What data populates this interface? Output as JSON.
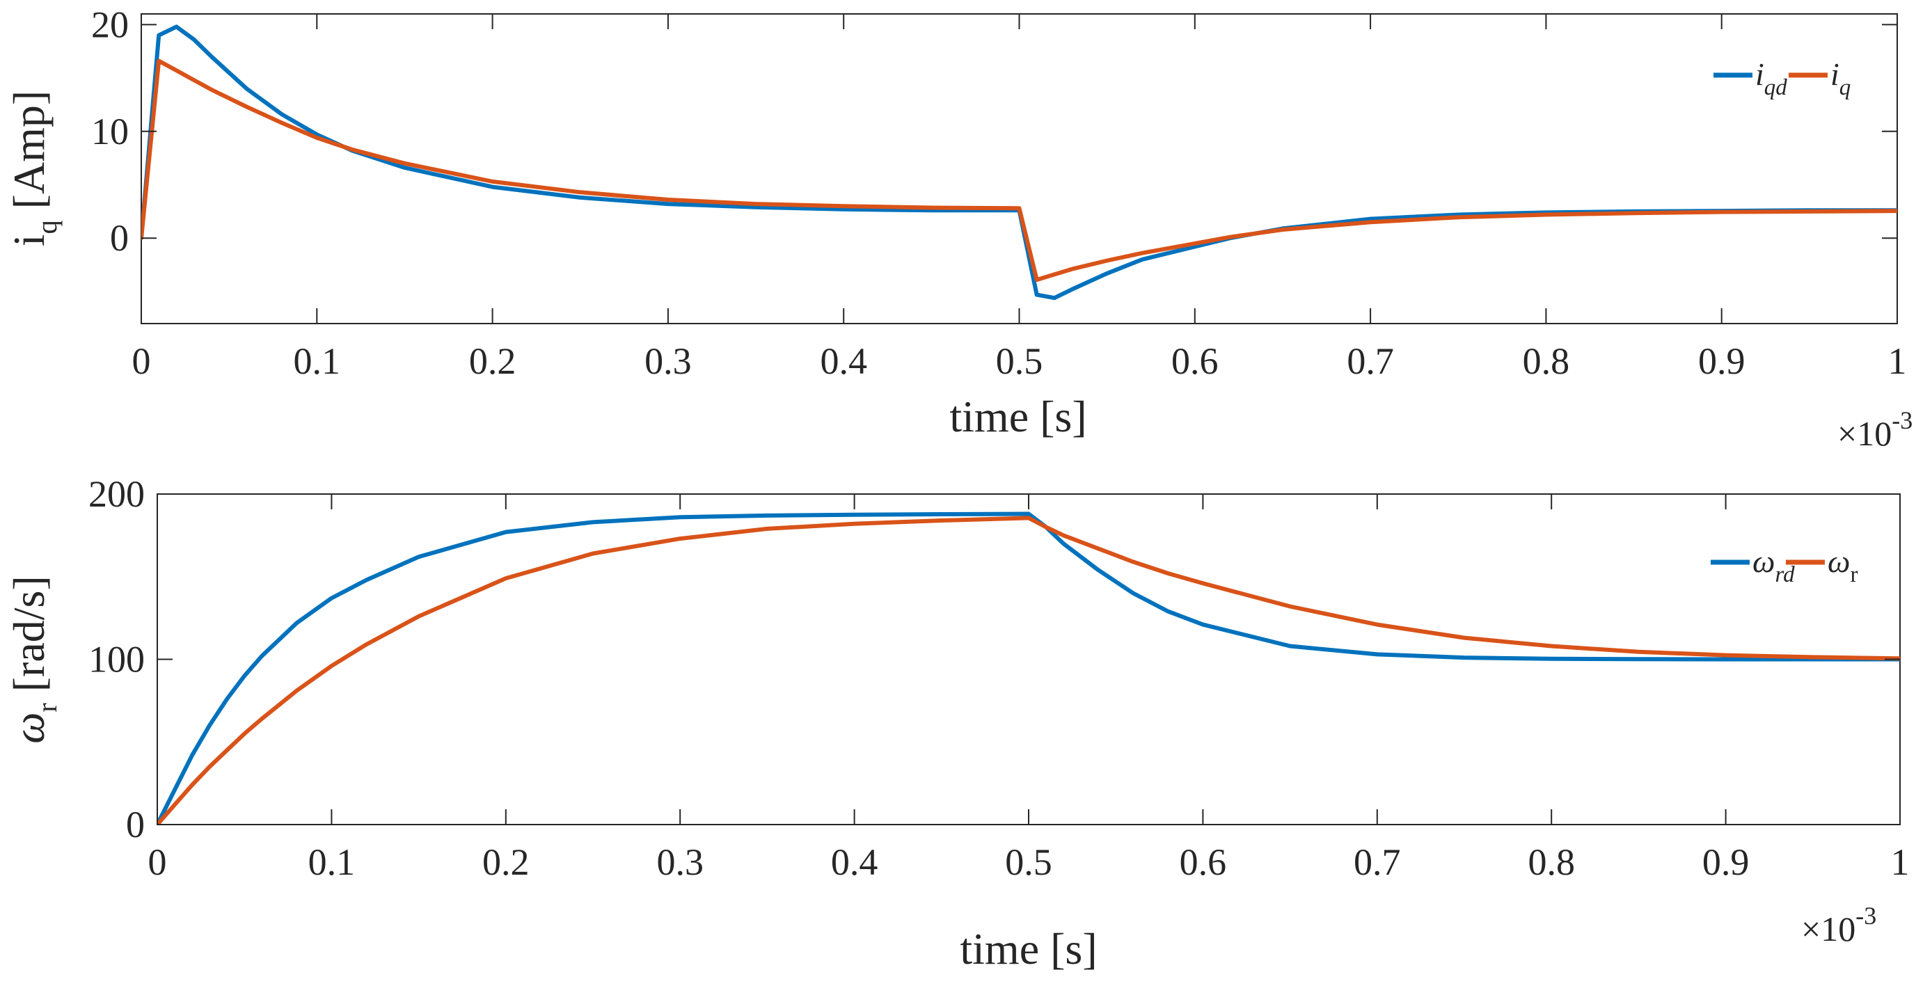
{
  "chart_data": [
    {
      "type": "line",
      "title": "",
      "xlabel": "time [s]",
      "ylabel": {
        "main": "i",
        "sub": "q",
        "unit": " [Amp]"
      },
      "x_exponent": {
        "prefix": "×10",
        "power": "-3"
      },
      "xlim": [
        0,
        1
      ],
      "ylim": [
        -8,
        21
      ],
      "xticks": [
        0,
        0.1,
        0.2,
        0.3,
        0.4,
        0.5,
        0.6,
        0.7,
        0.8,
        0.9,
        1
      ],
      "xtick_labels": [
        "0",
        "0.1",
        "0.2",
        "0.3",
        "0.4",
        "0.5",
        "0.6",
        "0.7",
        "0.8",
        "0.9",
        "1"
      ],
      "yticks": [
        0,
        10,
        20
      ],
      "ytick_labels": [
        "0",
        "10",
        "20"
      ],
      "grid": false,
      "legend": "top-right",
      "series": [
        {
          "name": "i_qd",
          "label_main": "i",
          "label_sub": "qd",
          "italic": true,
          "color": "#0072BD",
          "x": [
            0,
            0.01,
            0.02,
            0.03,
            0.04,
            0.05,
            0.06,
            0.08,
            0.1,
            0.12,
            0.15,
            0.2,
            0.25,
            0.3,
            0.35,
            0.4,
            0.45,
            0.5,
            0.51,
            0.52,
            0.53,
            0.55,
            0.57,
            0.6,
            0.62,
            0.65,
            0.7,
            0.75,
            0.8,
            0.85,
            0.9,
            0.95,
            1
          ],
          "y": [
            0,
            19,
            19.8,
            18.6,
            17.0,
            15.5,
            14.0,
            11.6,
            9.7,
            8.2,
            6.6,
            4.8,
            3.8,
            3.2,
            2.9,
            2.7,
            2.6,
            2.6,
            -5.3,
            -5.6,
            -4.8,
            -3.3,
            -2.0,
            -0.8,
            0.0,
            0.9,
            1.8,
            2.2,
            2.4,
            2.5,
            2.55,
            2.6,
            2.6
          ]
        },
        {
          "name": "i_q",
          "label_main": "i",
          "label_sub": "q",
          "italic": true,
          "color": "#D95319",
          "x": [
            0,
            0.01,
            0.02,
            0.03,
            0.04,
            0.05,
            0.06,
            0.08,
            0.1,
            0.12,
            0.15,
            0.2,
            0.25,
            0.3,
            0.35,
            0.4,
            0.45,
            0.5,
            0.51,
            0.52,
            0.53,
            0.55,
            0.57,
            0.6,
            0.62,
            0.65,
            0.7,
            0.75,
            0.8,
            0.85,
            0.9,
            0.95,
            1
          ],
          "y": [
            0,
            16.6,
            15.7,
            14.8,
            13.9,
            13.1,
            12.3,
            10.8,
            9.4,
            8.3,
            7.0,
            5.3,
            4.3,
            3.6,
            3.2,
            3.0,
            2.85,
            2.8,
            -3.9,
            -3.4,
            -2.9,
            -2.1,
            -1.4,
            -0.5,
            0.1,
            0.8,
            1.5,
            1.95,
            2.2,
            2.35,
            2.45,
            2.5,
            2.55
          ]
        }
      ]
    },
    {
      "type": "line",
      "title": "",
      "xlabel": "time [s]",
      "ylabel": {
        "main": "ω",
        "sub": "r",
        "unit": " [rad/s]"
      },
      "x_exponent": {
        "prefix": "×10",
        "power": "-3"
      },
      "xlim": [
        0,
        1
      ],
      "ylim": [
        0,
        200
      ],
      "xticks": [
        0,
        0.1,
        0.2,
        0.3,
        0.4,
        0.5,
        0.6,
        0.7,
        0.8,
        0.9,
        1
      ],
      "xtick_labels": [
        "0",
        "0.1",
        "0.2",
        "0.3",
        "0.4",
        "0.5",
        "0.6",
        "0.7",
        "0.8",
        "0.9",
        "1"
      ],
      "yticks": [
        0,
        100,
        200
      ],
      "ytick_labels": [
        "0",
        "100",
        "200"
      ],
      "grid": false,
      "legend": "top-right",
      "series": [
        {
          "name": "ω_rd",
          "label_main": "ω",
          "label_sub": "rd",
          "italic": true,
          "color": "#0072BD",
          "x": [
            0,
            0.01,
            0.02,
            0.03,
            0.04,
            0.05,
            0.06,
            0.08,
            0.1,
            0.12,
            0.15,
            0.2,
            0.25,
            0.3,
            0.35,
            0.4,
            0.45,
            0.5,
            0.51,
            0.52,
            0.54,
            0.56,
            0.58,
            0.6,
            0.65,
            0.7,
            0.75,
            0.8,
            0.85,
            0.9,
            0.95,
            1
          ],
          "y": [
            0,
            21,
            42,
            60,
            76,
            90,
            102,
            122,
            137,
            148,
            162,
            177,
            183,
            186,
            187,
            187.5,
            187.8,
            188,
            180,
            170,
            154,
            140,
            129,
            121,
            108,
            103,
            101,
            100.3,
            100.1,
            100,
            100,
            100
          ]
        },
        {
          "name": "ω_r",
          "label_main": "ω",
          "label_sub": "r",
          "italic": false,
          "color": "#D95319",
          "x": [
            0,
            0.01,
            0.02,
            0.03,
            0.04,
            0.05,
            0.06,
            0.08,
            0.1,
            0.12,
            0.15,
            0.2,
            0.25,
            0.3,
            0.35,
            0.4,
            0.45,
            0.5,
            0.51,
            0.52,
            0.54,
            0.56,
            0.58,
            0.6,
            0.65,
            0.7,
            0.75,
            0.8,
            0.85,
            0.9,
            0.95,
            1
          ],
          "y": [
            0,
            12,
            24,
            35,
            45,
            55,
            64,
            81,
            96,
            109,
            126,
            149,
            164,
            173,
            179,
            182,
            184,
            185.5,
            180,
            175,
            167,
            159,
            152,
            146,
            132,
            121,
            113,
            108,
            104.5,
            102.5,
            101.3,
            100.5
          ]
        }
      ]
    }
  ]
}
